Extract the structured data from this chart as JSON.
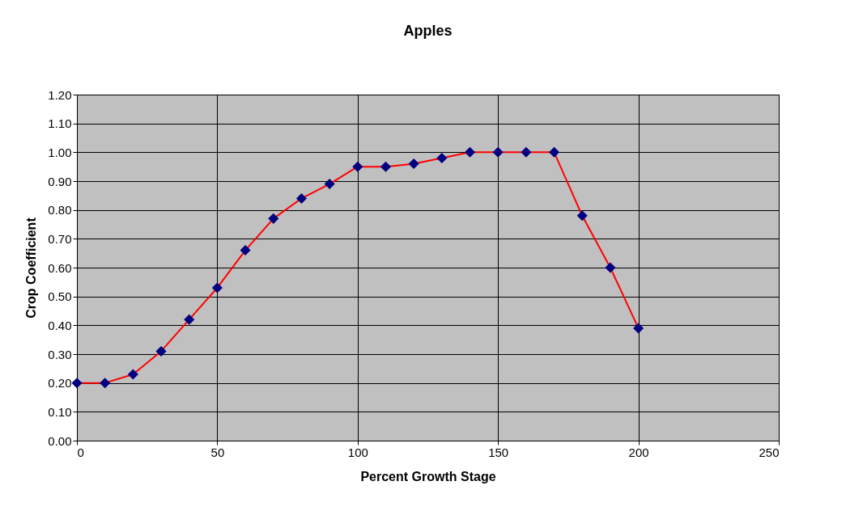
{
  "chart_data": {
    "type": "line",
    "title": "Apples",
    "xlabel": "Percent Growth Stage",
    "ylabel": "Crop Coefficient",
    "x": [
      0,
      10,
      20,
      30,
      40,
      50,
      60,
      70,
      80,
      90,
      100,
      110,
      120,
      130,
      140,
      150,
      160,
      170,
      180,
      190,
      200
    ],
    "series": [
      {
        "color": "#ff0000",
        "colors": [
          "#000080",
          "#000080",
          "#000080",
          "#000080",
          "#000080",
          "#000080",
          "#000080",
          "#000080",
          "#000080",
          "#000080",
          "#000080",
          "#000080",
          "#000080",
          "#000080",
          "#000080",
          "#000080",
          "#000080",
          "#000080",
          "#000080",
          "#000080",
          "#000080"
        ],
        "values": [
          0.2,
          0.2,
          0.23,
          0.31,
          0.42,
          0.53,
          0.66,
          0.77,
          0.84,
          0.89,
          0.95,
          0.95,
          0.96,
          0.98,
          1.0,
          1.0,
          1.0,
          1.0,
          0.78,
          0.6,
          0.39
        ]
      }
    ],
    "xlim": [
      0,
      250
    ],
    "xticks": [
      0,
      50,
      100,
      150,
      200,
      250
    ],
    "ylim": [
      0,
      1.2
    ],
    "yticks": [
      {
        "value": 0,
        "label": "0.00"
      },
      {
        "value": 0.1,
        "label": "0.10"
      },
      {
        "value": 0.2,
        "label": "0.20"
      },
      {
        "value": 0.3,
        "label": "0.30"
      },
      {
        "value": 0.4,
        "label": "0.40"
      },
      {
        "value": 0.5,
        "label": "0.50"
      },
      {
        "value": 0.6,
        "label": "0.60"
      },
      {
        "value": 0.7,
        "label": "0.70"
      },
      {
        "value": 0.8,
        "label": "0.80"
      },
      {
        "value": 0.9,
        "label": "0.90"
      },
      {
        "value": 1.0,
        "label": "1.00"
      },
      {
        "value": 1.1,
        "label": "1.10"
      },
      {
        "value": 1.2,
        "label": "1.20"
      }
    ],
    "grid": true,
    "marker": "diamond",
    "line_style": "solid"
  }
}
